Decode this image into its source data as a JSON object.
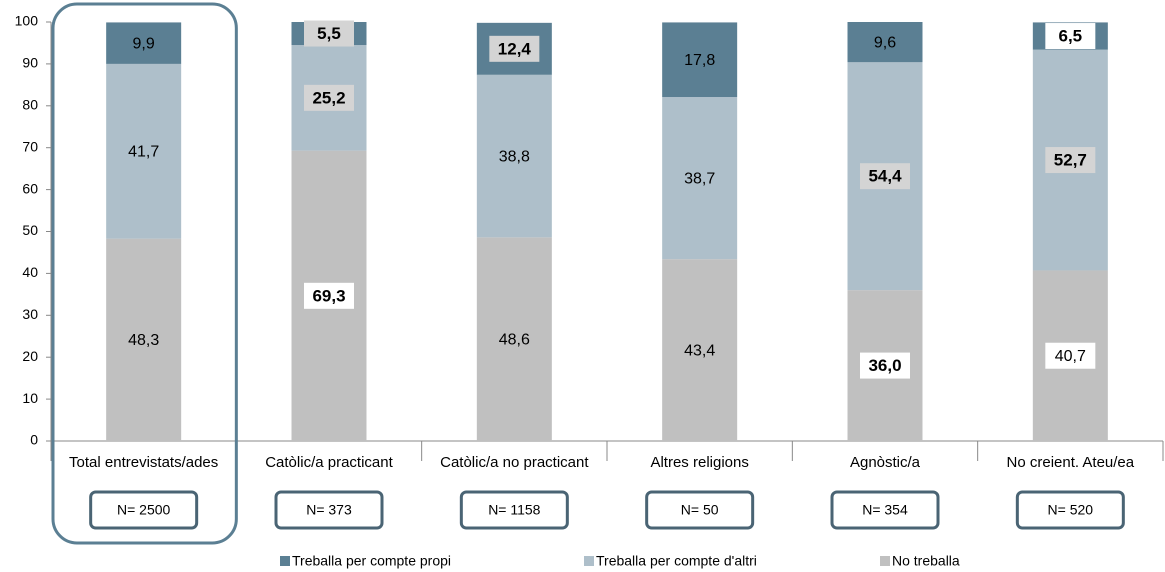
{
  "chart_data": {
    "type": "stacked_bar",
    "categories": [
      "Total entrevistats/ades",
      "Catòlic/a practicant",
      "Catòlic/a no practicant",
      "Altres religions",
      "Agnòstic/a",
      "No creient. Ateu/ea"
    ],
    "sample_sizes": [
      "N= 2500",
      "N= 373",
      "N= 1158",
      "N= 50",
      "N= 354",
      "N= 520"
    ],
    "series": [
      {
        "name": "No treballa",
        "color": "#c0c0c0",
        "values": [
          48.3,
          69.3,
          48.6,
          43.4,
          36.0,
          40.7
        ],
        "value_labels": [
          "48,3",
          "69,3",
          "48,6",
          "43,4",
          "36,0",
          "40,7"
        ],
        "bold": [
          false,
          true,
          false,
          false,
          true,
          false
        ],
        "boxed": [
          false,
          true,
          false,
          false,
          true,
          true
        ]
      },
      {
        "name": "Treballa per compte d'altri",
        "color": "#aebfca",
        "values": [
          41.7,
          25.2,
          38.8,
          38.7,
          54.4,
          52.7
        ],
        "value_labels": [
          "41,7",
          "25,2",
          "38,8",
          "38,7",
          "54,4",
          "52,7"
        ],
        "bold": [
          false,
          true,
          false,
          false,
          true,
          true
        ],
        "boxed": [
          false,
          true,
          false,
          false,
          true,
          true
        ]
      },
      {
        "name": "Treballa per compte propi",
        "color": "#5b7f93",
        "values": [
          9.9,
          5.5,
          12.4,
          17.8,
          9.6,
          6.5
        ],
        "value_labels": [
          "9,9",
          "5,5",
          "12,4",
          "17,8",
          "9,6",
          "6,5"
        ],
        "bold": [
          false,
          true,
          true,
          false,
          false,
          true
        ],
        "boxed": [
          false,
          true,
          true,
          false,
          false,
          true
        ]
      }
    ],
    "ylim": [
      0,
      100
    ],
    "yticks": [
      0,
      10,
      20,
      30,
      40,
      50,
      60,
      70,
      80,
      90,
      100
    ],
    "grid": false,
    "highlight_category": 0,
    "legend_position": "bottom"
  }
}
